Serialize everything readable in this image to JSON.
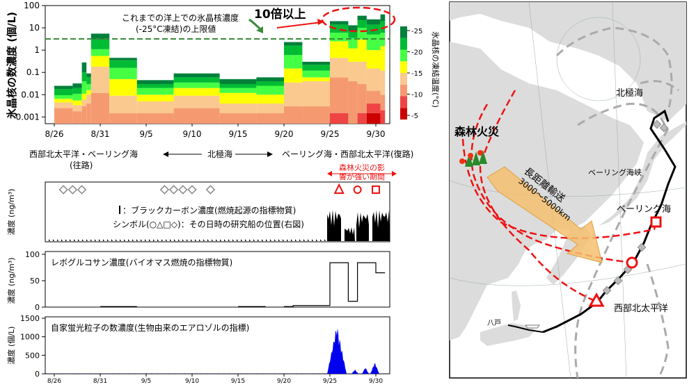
{
  "colors": {
    "temp_bins": [
      "#cc0000",
      "#ee4444",
      "#f59a70",
      "#f9c98f",
      "#ffff00",
      "#44ff44",
      "#00bb33",
      "#00803a"
    ],
    "dashed_green": "#3a8a3a",
    "red": "#ee1111",
    "black_carbon": "#000000",
    "levoglucosan": "#000000",
    "fluorescent": "#0000ee",
    "ship_outbound_symbol": "#888888",
    "map_land": "#dcdcdc",
    "map_sea": "#ffffff",
    "route_black": "#000000",
    "route_gray": "#aaaaaa",
    "arrow_orange": "#f5c070"
  },
  "chart_data": [
    {
      "type": "bar",
      "id": "ice-nuclei",
      "ylabel": "氷晶核の数濃度 (個/L)",
      "y_scale": "log",
      "ylim": [
        0.0005,
        100
      ],
      "y_ticks": [
        "0.001",
        "0.01",
        "0.1",
        "1",
        "10",
        "100"
      ],
      "x_tick_labels": [
        "8/26",
        "8/31",
        "9/5",
        "9/10",
        "9/15",
        "9/20",
        "9/25",
        "9/30"
      ],
      "colorbar_label": "氷晶核の凍結温度(°C)",
      "colorbar_ticks": [
        "-25",
        "-20",
        "-15",
        "-10",
        "-5"
      ],
      "limit_line_value": 3.2,
      "annotation_limit": "これまでの洋上での氷晶核濃度\n(-25°C凍結)の上限値",
      "annotation_10x": "10倍以上",
      "segments_note": "each bar: freezing temperature -5 to -25 C, top value = total at -25 C",
      "bars": [
        {
          "start": "8/26",
          "end": "8/28",
          "levels": [
            0,
            0,
            0.0025,
            0.0045,
            0.0065,
            0.0095,
            0.018,
            0.025
          ]
        },
        {
          "start": "8/28",
          "end": "8/29",
          "levels": [
            0,
            0,
            0.0018,
            0.0034,
            0.0055,
            0.011,
            0.02,
            0.032
          ]
        },
        {
          "start": "8/29",
          "end": "8/29.5",
          "levels": [
            0,
            0,
            0.003,
            0.006,
            0.011,
            0.04,
            0.1,
            0.28
          ]
        },
        {
          "start": "8/29.5",
          "end": "8/30",
          "levels": [
            0,
            0,
            0.004,
            0.01,
            0.016,
            0.03,
            0.06,
            0.09
          ]
        },
        {
          "start": "8/30",
          "end": "9/1",
          "levels": [
            0,
            0,
            0.012,
            0.18,
            0.55,
            1.1,
            3.0,
            5.5
          ]
        },
        {
          "start": "9/1",
          "end": "9/4",
          "levels": [
            0,
            0,
            0.0015,
            0.009,
            0.05,
            0.16,
            0.35,
            0.45
          ]
        },
        {
          "start": "9/4",
          "end": "9/8",
          "levels": [
            0,
            0,
            0.0015,
            0.005,
            0.01,
            0.02,
            0.03,
            0.045
          ]
        },
        {
          "start": "9/8",
          "end": "9/13",
          "levels": [
            0,
            0,
            0.0025,
            0.009,
            0.02,
            0.035,
            0.06,
            0.09
          ]
        },
        {
          "start": "9/13",
          "end": "9/17",
          "levels": [
            0,
            0,
            0.0015,
            0.004,
            0.012,
            0.02,
            0.03,
            0.05
          ]
        },
        {
          "start": "9/17",
          "end": "9/20",
          "levels": [
            0,
            0,
            0.0015,
            0.004,
            0.01,
            0.025,
            0.04,
            0.06
          ]
        },
        {
          "start": "9/20",
          "end": "9/22",
          "levels": [
            0,
            0,
            0.003,
            0.035,
            0.15,
            0.6,
            1.6,
            2.3
          ]
        },
        {
          "start": "9/22",
          "end": "9/25",
          "levels": [
            0,
            0,
            0.003,
            0.04,
            0.06,
            0.12,
            0.22,
            0.3
          ]
        },
        {
          "start": "9/25",
          "end": "9/27",
          "levels": [
            0,
            0.0015,
            0.06,
            0.45,
            2.5,
            6,
            14,
            20
          ]
        },
        {
          "start": "9/27",
          "end": "9/28",
          "levels": [
            0,
            0,
            0.04,
            0.3,
            1.2,
            3.5,
            7,
            13
          ]
        },
        {
          "start": "9/28",
          "end": "9/29",
          "levels": [
            0,
            0.0015,
            0.03,
            0.3,
            3.0,
            10,
            22,
            35
          ]
        },
        {
          "start": "9/29",
          "end": "9/30.5",
          "levels": [
            0.0015,
            0.004,
            0.015,
            0.15,
            1.0,
            5,
            14,
            24
          ]
        },
        {
          "start": "9/30.5",
          "end": "10/1",
          "levels": [
            0,
            0.002,
            0.01,
            0.12,
            1.5,
            6,
            20,
            40
          ]
        }
      ]
    },
    {
      "type": "area",
      "id": "black-carbon",
      "ylabel": "濃度 (ng/m³)",
      "legend": "：ブラックカーボン濃度(燃焼起源の指標物質)",
      "legend2": "シンボル(○△□◇)：その日時の研究船の位置(右図)"
    },
    {
      "type": "line",
      "id": "levoglucosan",
      "ylabel": "濃度 (ng/m³)",
      "title": "レボグルコサン濃度(バイオマス燃焼の指標物質)",
      "ylim": [
        0,
        100
      ],
      "y_ticks": [
        "0",
        "50",
        "100"
      ],
      "segments": [
        {
          "x0": "8/31",
          "x1": "9/4",
          "y": 1
        },
        {
          "x0": "9/15",
          "x1": "9/18",
          "y": 1
        },
        {
          "x0": "9/20",
          "x1": "9/21",
          "y": 1
        },
        {
          "x0": "9/21",
          "x1": "9/25",
          "y": 3
        },
        {
          "x0": "9/25",
          "x1": "9/27",
          "y": 84
        },
        {
          "x0": "9/27",
          "x1": "9/28",
          "y": 11
        },
        {
          "x0": "9/28",
          "x1": "9/30",
          "y": 84
        },
        {
          "x0": "9/30",
          "x1": "10/1",
          "y": 65
        }
      ]
    },
    {
      "type": "area",
      "id": "fluorescent",
      "ylabel": "濃度 (個/L)",
      "title": "自家蛍光粒子の数濃度(生物由来のエアロゾルの指標)",
      "ylim": [
        0,
        1500
      ],
      "y_ticks": [
        "0",
        "500",
        "1000",
        "1500"
      ]
    }
  ],
  "labels": {
    "region_outbound": "西部北太平洋・ベーリング海",
    "region_outbound_sub": "(往路)",
    "region_arctic": "北極海",
    "region_return": "ベーリング海・西部北太平洋(復路)",
    "fire_period": "森林火災の影\n響が強い期間"
  },
  "map": {
    "arctic_ocean": "北極海",
    "bering_strait": "ベーリング海峡",
    "bering_sea": "ベーリング海",
    "western_pacific": "西部北太平洋",
    "forest_fire": "森林火災",
    "long_range_transport": "長距離輸送",
    "distance": "3000～5000km",
    "hachinohe": "八戸"
  }
}
